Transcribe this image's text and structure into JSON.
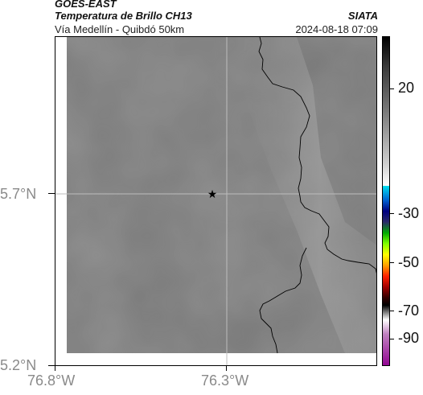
{
  "header": {
    "satellite": "GOES-EAST",
    "product": "Temperatura de Brillo CH13",
    "region": "Vía Medellín - Quibdó 50km",
    "org": "SIATA",
    "datetime": "2024-08-18 07:09"
  },
  "map": {
    "lat_labels": [
      "5.7°N",
      "5.2°N"
    ],
    "lon_labels": [
      "76.8°W",
      "76.3°W"
    ],
    "marker": "star-marker",
    "base_color": "#7a7a7a"
  },
  "colorbar": {
    "ticks": [
      "20",
      "-30",
      "-50",
      "-70",
      "-90"
    ],
    "colors": [
      "#000000",
      "#ffffff",
      "#00c8e6",
      "#0000a0",
      "#00ff00",
      "#ffff00",
      "#ff0000",
      "#7a0000",
      "#000000",
      "#ffffff",
      "#a020a0"
    ]
  }
}
